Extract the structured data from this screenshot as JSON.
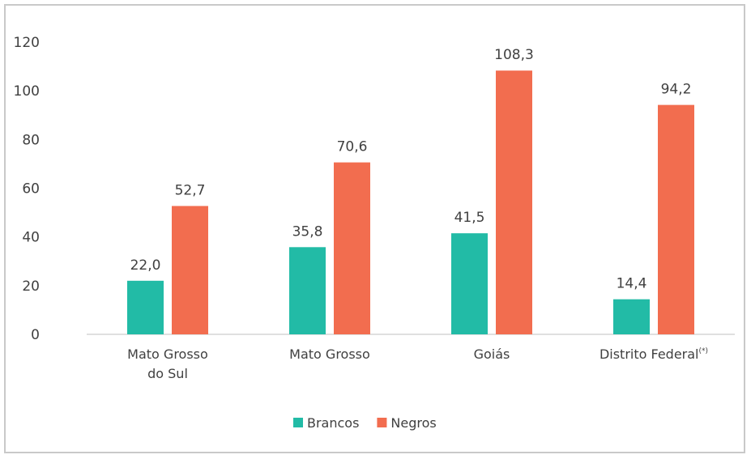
{
  "colors": {
    "brancos": "#22bba6",
    "negros": "#f26d4f",
    "axis": "#d6d6d6",
    "text": "#404040",
    "frame": "#c9c9c9"
  },
  "chart_data": {
    "type": "bar",
    "categories": [
      {
        "lines": [
          "Mato Grosso",
          "do Sul"
        ],
        "sup": ""
      },
      {
        "lines": [
          "Mato Grosso"
        ],
        "sup": ""
      },
      {
        "lines": [
          "Goiás"
        ],
        "sup": ""
      },
      {
        "lines": [
          "Distrito Federal"
        ],
        "sup": "(*)"
      }
    ],
    "series": [
      {
        "name": "Brancos",
        "values": [
          22.0,
          35.8,
          41.5,
          14.4
        ],
        "labels": [
          "22,0",
          "35,8",
          "41,5",
          "14,4"
        ]
      },
      {
        "name": "Negros",
        "values": [
          52.7,
          70.6,
          108.3,
          94.2
        ],
        "labels": [
          "52,7",
          "70,6",
          "108,3",
          "94,2"
        ]
      }
    ],
    "ylim": [
      0,
      120
    ],
    "yticks": [
      0,
      20,
      40,
      60,
      80,
      100,
      120
    ],
    "ytick_labels": [
      "0",
      "20",
      "40",
      "60",
      "80",
      "100",
      "120"
    ],
    "grid": false,
    "legend_position": "bottom"
  }
}
